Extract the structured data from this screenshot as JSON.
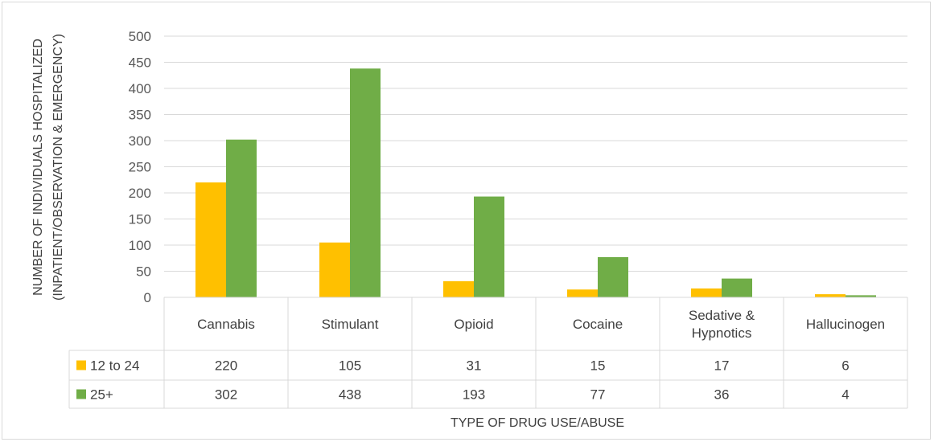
{
  "chart_data": {
    "type": "bar",
    "categories": [
      [
        "Cannabis"
      ],
      [
        "Stimulant"
      ],
      [
        "Opioid"
      ],
      [
        "Cocaine"
      ],
      [
        "Sedative &",
        "Hypnotics"
      ],
      [
        "Hallucinogen"
      ]
    ],
    "series": [
      {
        "name": "12 to 24",
        "color": "#ffc000",
        "values": [
          220,
          105,
          31,
          15,
          17,
          6
        ]
      },
      {
        "name": "25+",
        "color": "#70ad47",
        "values": [
          302,
          438,
          193,
          77,
          36,
          4
        ]
      }
    ],
    "value_labels": [
      [
        "220",
        "105",
        "31",
        "15",
        "17",
        "6"
      ],
      [
        "302",
        "438",
        "193",
        "77",
        "36",
        "4"
      ]
    ],
    "yticks": [
      "0",
      "50",
      "100",
      "150",
      "200",
      "250",
      "300",
      "350",
      "400",
      "450",
      "500"
    ],
    "ylim": [
      0,
      500
    ],
    "ylabel": [
      "NUMBER OF INDIVIDUALS HOSPITALIZED",
      "(INPATIENT/OBSERVATION & EMERGENCY)"
    ],
    "xlabel": "TYPE OF DRUG USE/ABUSE",
    "grid": true,
    "legend": "data-table"
  }
}
